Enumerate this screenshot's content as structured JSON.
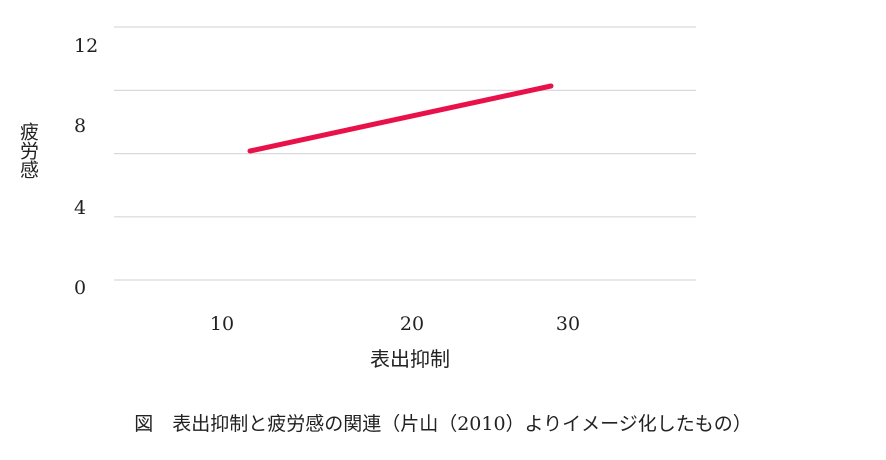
{
  "chart_data": {
    "type": "line",
    "title": "",
    "xlabel": "表出抑制",
    "ylabel": "疲労感",
    "x_ticks": [
      "10",
      "20",
      "30"
    ],
    "y_ticks": [
      "0",
      "4",
      "8",
      "12"
    ],
    "xlim": [
      2,
      40
    ],
    "ylim": [
      0,
      13
    ],
    "grid": true,
    "legend": "none",
    "series": [
      {
        "color": "#e8114a",
        "points": [
          {
            "x": 12,
            "y": 8.3
          },
          {
            "x": 29,
            "y": 12.2
          }
        ]
      }
    ]
  },
  "caption": "図　表出抑制と疲労感の関連（片山（2010）よりイメージ化したもの）"
}
